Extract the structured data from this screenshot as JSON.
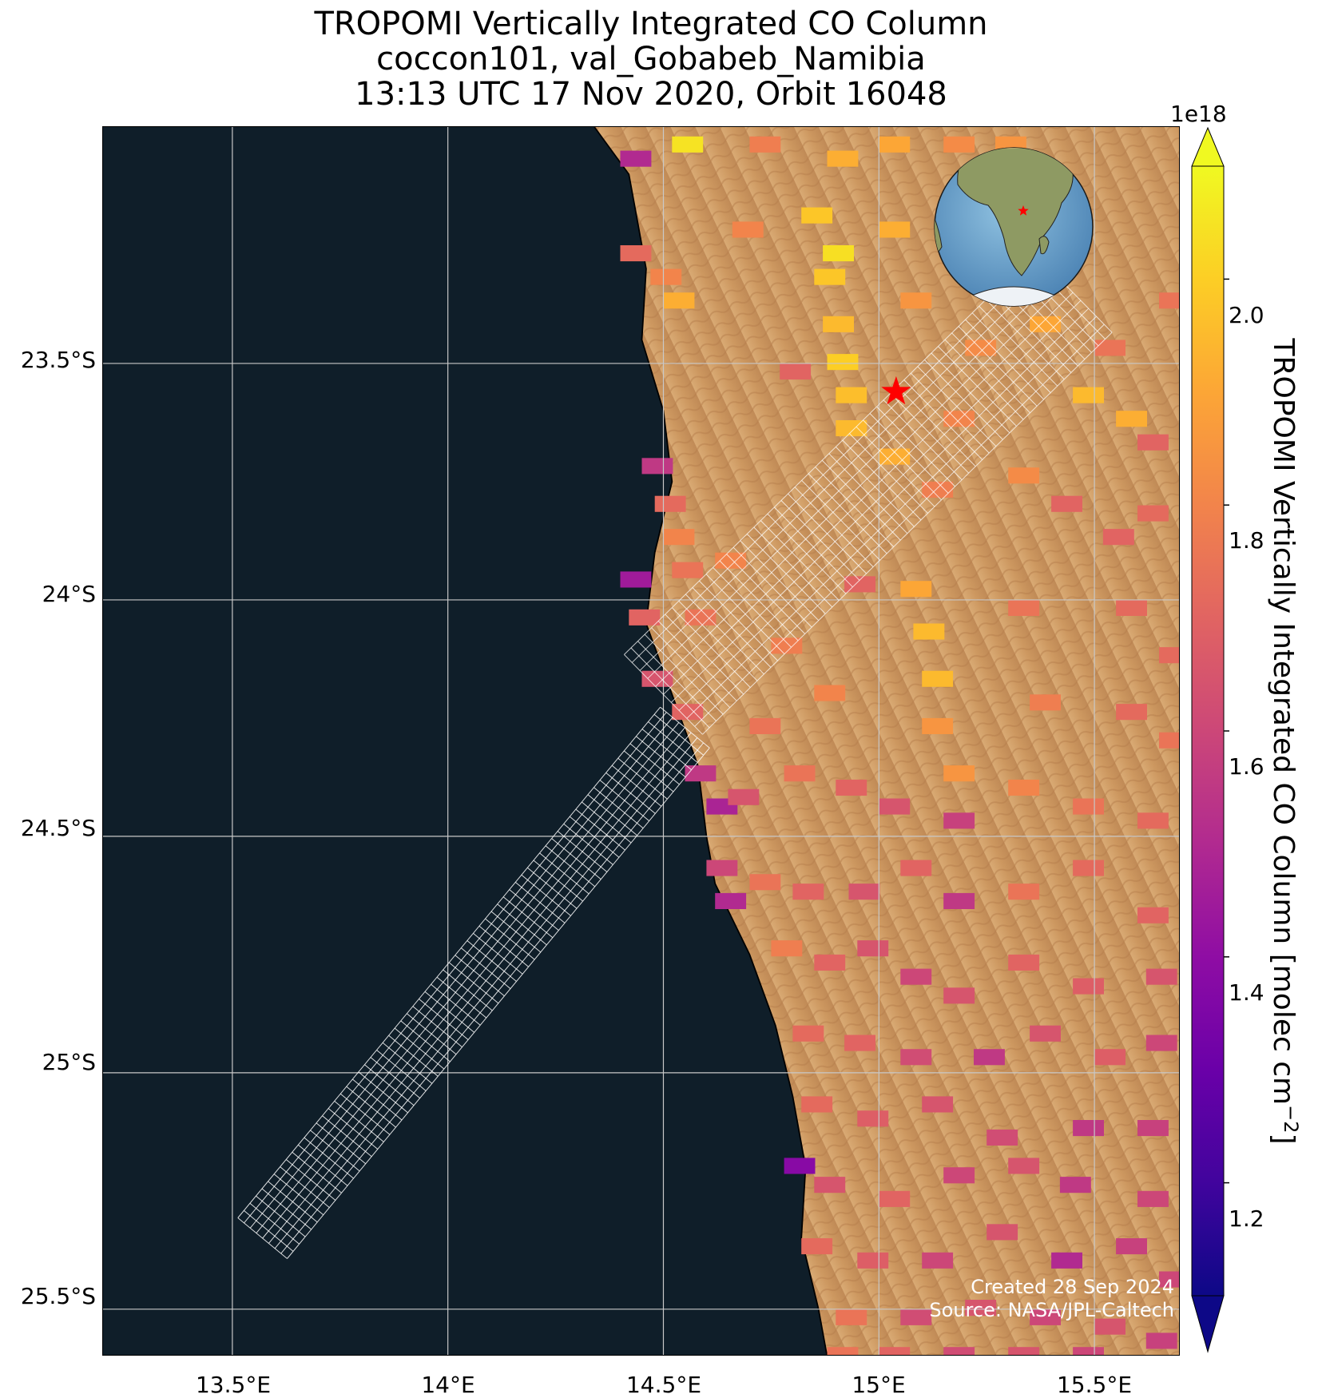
{
  "title": {
    "line1": "TROPOMI Vertically Integrated CO Column",
    "line2": "coccon101, val_Gobabeb_Namibia",
    "line3": "13:13 UTC 17 Nov 2020, Orbit 16048"
  },
  "map": {
    "projection": "PlateCarree",
    "lon_range": [
      13.2,
      15.7
    ],
    "lat_range": [
      -25.6,
      -23.0
    ],
    "background": "satellite imagery: dark ocean west, desert dunes east",
    "coastline_color": "#000000",
    "gridlines": true,
    "lat_ticks": [
      "23.5°S",
      "24°S",
      "24.5°S",
      "25°S",
      "25.5°S"
    ],
    "lon_ticks": [
      "13.5°E",
      "14°E",
      "14.5°E",
      "15°E",
      "15.5°E"
    ],
    "site_marker": {
      "label": "val_Gobabeb_Namibia",
      "lon": 15.04,
      "lat": -23.56,
      "symbol": "star",
      "color": "#ff0000"
    },
    "inset_globe": {
      "content": "globe centered on Africa with red star at site"
    }
  },
  "colorbar": {
    "exponent": "1e18",
    "ticks": [
      "1.2",
      "1.4",
      "1.6",
      "1.8",
      "2.0"
    ],
    "range": [
      1.1,
      2.1
    ],
    "extend": "both",
    "colormap": "plasma",
    "title_main": "TROPOMI Vertically Integrated CO Column [molec cm",
    "title_sup": "−2",
    "title_end": "]"
  },
  "credit": {
    "line1": "Created 28 Sep 2024",
    "line2": "Source: NASA/JPL-Caltech"
  },
  "chart_data": {
    "type": "heatmap",
    "title": "TROPOMI Vertically Integrated CO Column",
    "xlabel": "",
    "ylabel": "",
    "units": "molec cm⁻² (×1e18)",
    "xlim": [
      13.2,
      15.7
    ],
    "ylim": [
      -25.6,
      -23.0
    ],
    "note": "pixels colored by CO column value",
    "value_range": [
      1.1,
      2.1
    ]
  }
}
